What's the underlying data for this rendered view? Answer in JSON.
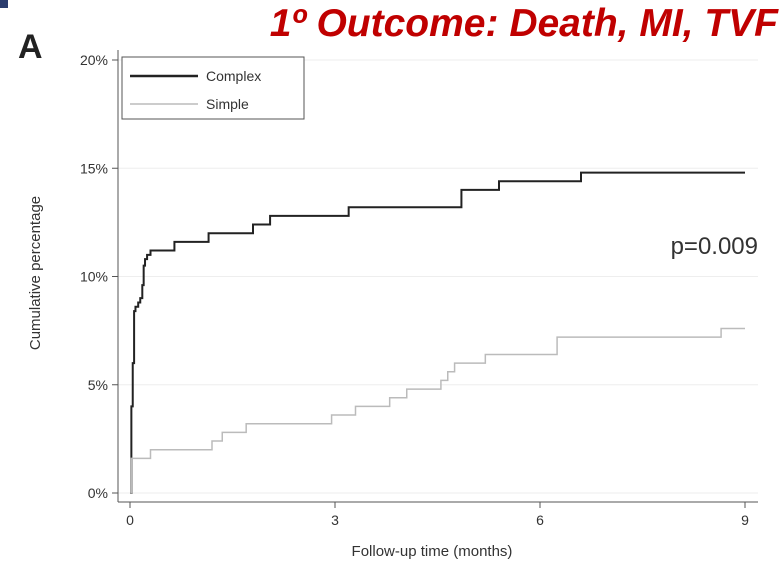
{
  "slide": {
    "title": "1º Outcome: Death, MI, TVF",
    "panel_letter": "A",
    "title_color": "#c00000"
  },
  "chart_data": {
    "type": "line",
    "xlabel": "Follow-up time (months)",
    "ylabel": "Cumulative percentage",
    "xlim": [
      0,
      9
    ],
    "ylim": [
      0,
      20
    ],
    "x_ticks": [
      0,
      3,
      6,
      9
    ],
    "x_tick_labels": [
      "0",
      "3",
      "6",
      "9"
    ],
    "y_ticks": [
      0,
      5,
      10,
      15,
      20
    ],
    "y_tick_labels": [
      "0%",
      "5%",
      "10%",
      "15%",
      "20%"
    ],
    "grid": "horizontal",
    "legend_position": "top-left",
    "annotation": "p=0.009",
    "series": [
      {
        "name": "Complex",
        "color": "#222222",
        "step": true,
        "x": [
          0,
          0.02,
          0.04,
          0.06,
          0.08,
          0.12,
          0.15,
          0.18,
          0.2,
          0.22,
          0.25,
          0.3,
          0.65,
          1.15,
          1.8,
          2.05,
          3.2,
          4.7,
          4.85,
          5.4,
          6.6,
          9.0
        ],
        "y": [
          0,
          4.0,
          6.0,
          8.4,
          8.6,
          8.8,
          9.0,
          9.6,
          10.5,
          10.8,
          11.0,
          11.2,
          11.6,
          12.0,
          12.4,
          12.8,
          13.2,
          13.2,
          14.0,
          14.4,
          14.8,
          14.8
        ]
      },
      {
        "name": "Simple",
        "color": "#bbbbbb",
        "step": true,
        "x": [
          0,
          0.02,
          0.3,
          1.2,
          1.35,
          1.7,
          2.1,
          2.8,
          2.95,
          3.3,
          3.6,
          3.8,
          4.05,
          4.4,
          4.55,
          4.65,
          4.75,
          5.2,
          6.25,
          8.65,
          9.0
        ],
        "y": [
          0,
          1.6,
          2.0,
          2.4,
          2.8,
          3.2,
          3.2,
          3.2,
          3.6,
          4.0,
          4.0,
          4.4,
          4.8,
          4.8,
          5.2,
          5.6,
          6.0,
          6.4,
          7.2,
          7.6,
          7.6
        ]
      }
    ]
  }
}
